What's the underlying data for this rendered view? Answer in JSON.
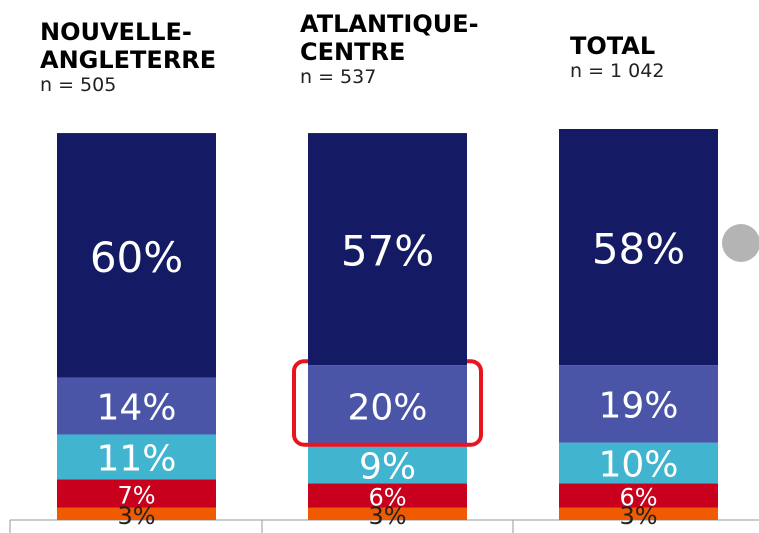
{
  "chart_data": {
    "type": "stacked_bar",
    "categories": [
      "NOUVELLE-ANGLETERRE",
      "ATLANTIQUE-CENTRE",
      "TOTAL"
    ],
    "n": [
      "n = 505",
      "n = 537",
      "n = 1 042"
    ],
    "ylim": [
      0,
      96
    ],
    "series": [
      {
        "color": "#f05a00",
        "label_color": "#222222",
        "values": [
          3,
          3,
          3
        ],
        "value_labels": [
          "3%",
          "3%",
          "3%"
        ]
      },
      {
        "color": "#c8001e",
        "label_color": "#ffffff",
        "values": [
          7,
          6,
          6
        ],
        "value_labels": [
          "7%",
          "6%",
          "6%"
        ]
      },
      {
        "color": "#41b4cf",
        "label_color": "#ffffff",
        "values": [
          11,
          9,
          10
        ],
        "value_labels": [
          "11%",
          "9%",
          "10%"
        ]
      },
      {
        "color": "#4a55a8",
        "label_color": "#ffffff",
        "values": [
          14,
          20,
          19
        ],
        "value_labels": [
          "14%",
          "20%",
          "19%"
        ]
      },
      {
        "color": "#141a64",
        "label_color": "#ffffff",
        "values": [
          60,
          57,
          58
        ],
        "value_labels": [
          "60%",
          "57%",
          "58%"
        ]
      }
    ]
  }
}
